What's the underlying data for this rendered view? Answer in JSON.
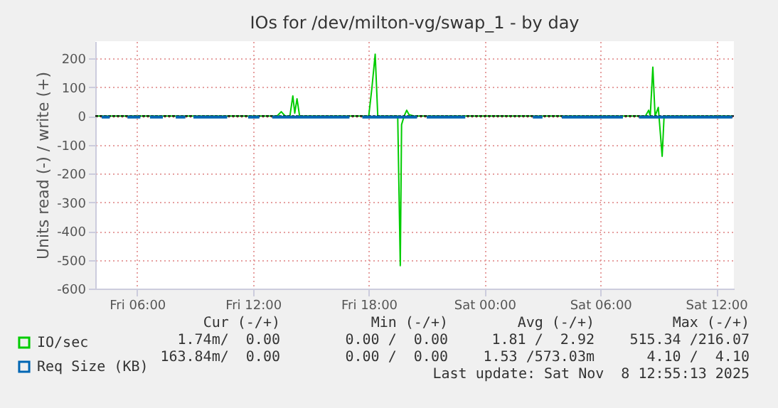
{
  "chart_data": {
    "type": "line",
    "title": "IOs for /dev/milton-vg/swap_1 - by day",
    "ylabel": "Units read (-) / write (+)",
    "xlim": [
      "2025-11-07T03:50",
      "2025-11-08T12:55"
    ],
    "xticks": [
      {
        "value": "2025-11-07T06:00",
        "label": "Fri 06:00"
      },
      {
        "value": "2025-11-07T12:00",
        "label": "Fri 12:00"
      },
      {
        "value": "2025-11-07T18:00",
        "label": "Fri 18:00"
      },
      {
        "value": "2025-11-08T00:00",
        "label": "Sat 00:00"
      },
      {
        "value": "2025-11-08T06:00",
        "label": "Sat 06:00"
      },
      {
        "value": "2025-11-08T12:00",
        "label": "Sat 12:00"
      }
    ],
    "ylim": [
      -600,
      260
    ],
    "yticks": [
      -600,
      -500,
      -400,
      -300,
      -200,
      -100,
      0,
      100,
      200
    ],
    "ref_lines": [
      {
        "axis": "y",
        "value": 0,
        "color": "#000000",
        "line_style": "dotted"
      }
    ],
    "grid": true,
    "legend": "bottom left",
    "marker": "none",
    "line_style": "solid",
    "series": [
      {
        "name": "IO/sec",
        "color": "#00cc00",
        "x": [
          "2025-11-07T03:50",
          "2025-11-07T13:15",
          "2025-11-07T13:28",
          "2025-11-07T13:40",
          "2025-11-07T13:55",
          "2025-11-07T14:04",
          "2025-11-07T14:10",
          "2025-11-07T14:17",
          "2025-11-07T14:25",
          "2025-11-07T18:00",
          "2025-11-07T18:10",
          "2025-11-07T18:20",
          "2025-11-07T18:28",
          "2025-11-07T19:30",
          "2025-11-07T19:38",
          "2025-11-07T19:42",
          "2025-11-07T19:50",
          "2025-11-07T19:58",
          "2025-11-07T20:05",
          "2025-11-07T20:20",
          "2025-11-08T08:20",
          "2025-11-08T08:30",
          "2025-11-08T08:35",
          "2025-11-08T08:43",
          "2025-11-08T08:50",
          "2025-11-08T09:00",
          "2025-11-08T09:12",
          "2025-11-08T09:18",
          "2025-11-08T12:50"
        ],
        "values": [
          0,
          0,
          15,
          0,
          0,
          70,
          10,
          60,
          0,
          0,
          100,
          215,
          0,
          0,
          -520,
          -30,
          0,
          20,
          5,
          0,
          0,
          20,
          0,
          170,
          0,
          30,
          -140,
          0,
          0
        ]
      },
      {
        "name": "Req Size (KB)",
        "color": "#0066b3",
        "x": [
          "2025-11-07T04:10",
          "2025-11-07T04:35",
          "2025-11-07T05:00",
          "2025-11-07T05:30",
          "2025-11-07T06:10",
          "2025-11-07T06:20",
          "2025-11-07T06:40",
          "2025-11-07T07:20",
          "2025-11-07T07:40",
          "2025-11-07T08:00",
          "2025-11-07T08:30",
          "2025-11-07T08:45",
          "2025-11-07T08:55",
          "2025-11-07T10:40",
          "2025-11-07T11:20",
          "2025-11-07T11:45",
          "2025-11-07T12:20",
          "2025-11-07T12:30",
          "2025-11-07T13:00",
          "2025-11-07T17:00",
          "2025-11-07T17:20",
          "2025-11-07T17:40",
          "2025-11-07T20:30",
          "2025-11-07T20:45",
          "2025-11-07T21:00",
          "2025-11-07T23:00",
          "2025-11-08T01:00",
          "2025-11-08T02:30",
          "2025-11-08T03:00",
          "2025-11-08T03:30",
          "2025-11-08T04:00",
          "2025-11-08T07:10",
          "2025-11-08T07:35",
          "2025-11-08T08:00",
          "2025-11-08T12:50"
        ],
        "values": [
          -4,
          -4,
          null,
          -4,
          -4,
          null,
          -4,
          -4,
          null,
          -4,
          -4,
          null,
          -4,
          -4,
          null,
          -4,
          -4,
          null,
          -4,
          -4,
          null,
          -4,
          -4,
          null,
          -4,
          -4,
          null,
          -4,
          -4,
          null,
          -4,
          -4,
          null,
          -4,
          -4
        ]
      }
    ],
    "annotations": [
      "Cur (-/+)",
      "Min (-/+)",
      "Avg (-/+)",
      "Max (-/+)",
      "1.74m/  0.00",
      "0.00 /  0.00",
      "1.81 /  2.92",
      "515.34 /216.07",
      "163.84m/  0.00",
      "0.00 /  0.00",
      "1.53 /573.03m",
      "4.10 /  4.10",
      "Last update: Sat Nov  8 12:55:13 2025"
    ]
  }
}
